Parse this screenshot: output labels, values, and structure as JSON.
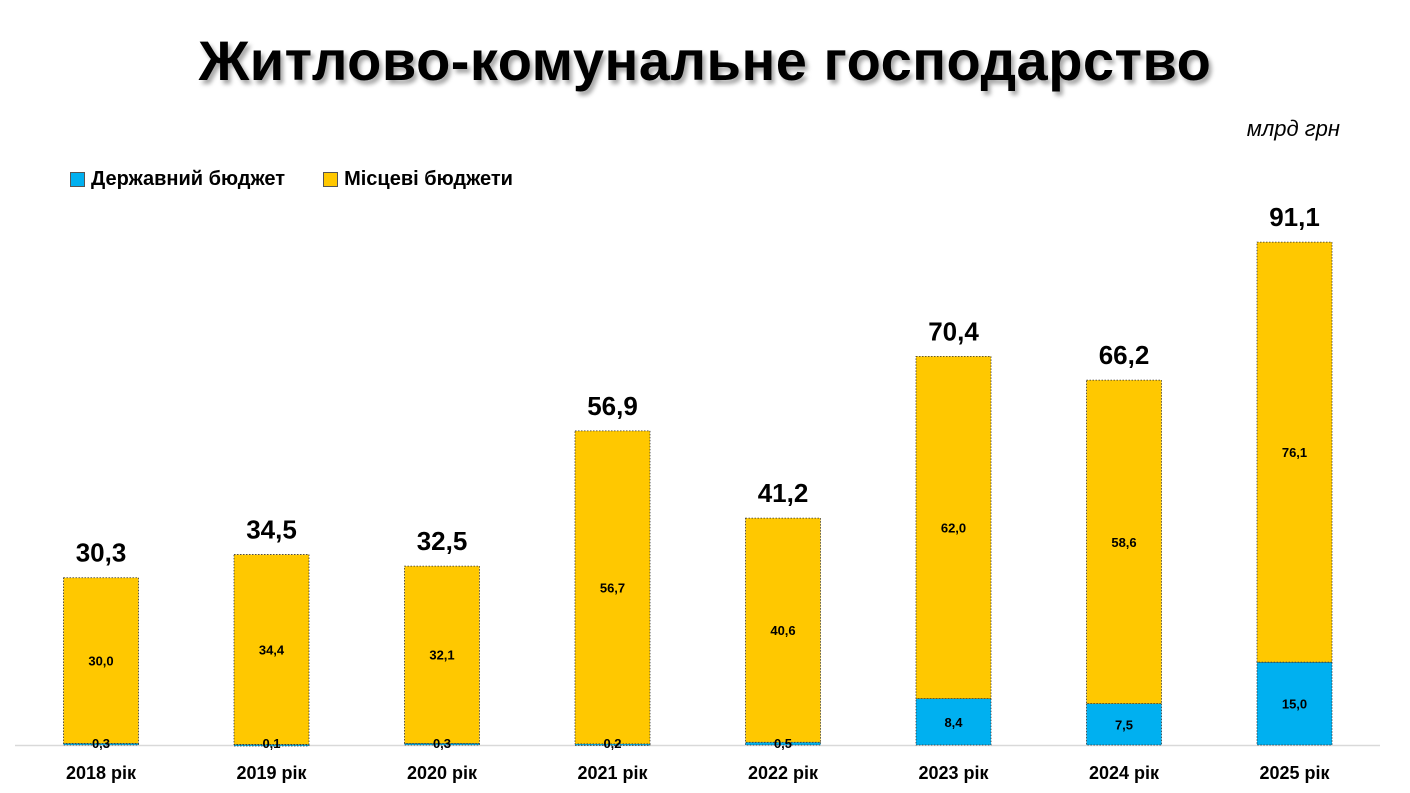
{
  "title": "Житлово-комунальне господарство",
  "unit": "млрд грн",
  "legend": {
    "state": "Державний бюджет",
    "local": "Місцеві бюджети"
  },
  "colors": {
    "state": "#00b0f0",
    "local": "#ffc800"
  },
  "chart_data": {
    "type": "bar",
    "stacked": true,
    "categories": [
      "2018 рік",
      "2019 рік",
      "2020 рік",
      "2021 рік",
      "2022 рік",
      "2023 рік",
      "2024 рік",
      "2025 рік"
    ],
    "series": [
      {
        "name": "Державний бюджет",
        "values": [
          0.3,
          0.1,
          0.3,
          0.2,
          0.5,
          8.4,
          7.5,
          15.0
        ],
        "labels": [
          "0,3",
          "0,1",
          "0,3",
          "0,2",
          "0,5",
          "8,4",
          "7,5",
          "15,0"
        ]
      },
      {
        "name": "Місцеві бюджети",
        "values": [
          30.0,
          34.4,
          32.1,
          56.7,
          40.6,
          62.0,
          58.6,
          76.1
        ],
        "labels": [
          "30,0",
          "34,4",
          "32,1",
          "56,7",
          "40,6",
          "62,0",
          "58,6",
          "76,1"
        ]
      }
    ],
    "totals": [
      30.3,
      34.5,
      32.5,
      56.9,
      41.2,
      70.4,
      66.2,
      91.1
    ],
    "total_labels": [
      "30,3",
      "34,5",
      "32,5",
      "56,9",
      "41,2",
      "70,4",
      "66,2",
      "91,1"
    ],
    "title": "Житлово-комунальне господарство",
    "ylabel": "млрд грн",
    "ylim": [
      0,
      100
    ],
    "legend_position": "top-left",
    "grid": false
  }
}
